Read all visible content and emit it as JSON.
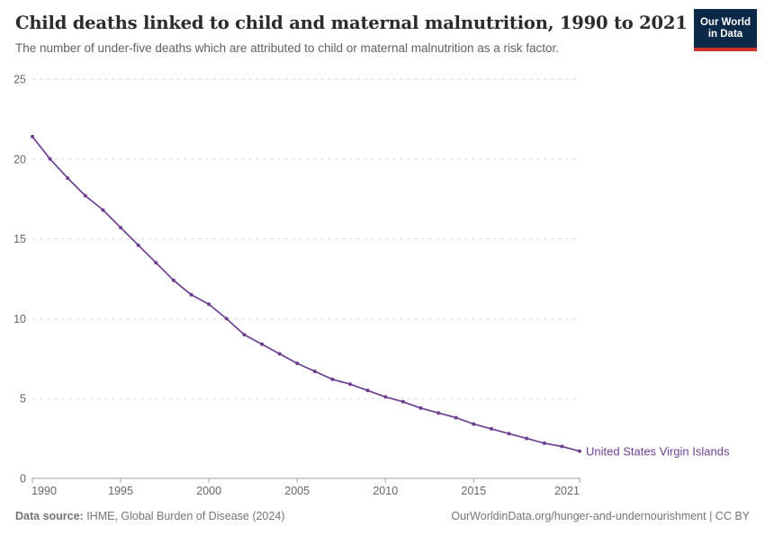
{
  "header": {
    "title": "Child deaths linked to child and maternal malnutrition, 1990 to 2021",
    "subtitle": "The number of under-five deaths which are attributed to child or maternal malnutrition as a risk factor.",
    "logo_line1": "Our World",
    "logo_line2": "in Data"
  },
  "footer": {
    "data_source_label": "Data source:",
    "data_source_value": " IHME, Global Burden of Disease (2024)",
    "credit": "OurWorldinData.org/hunger-and-undernourishment | CC BY"
  },
  "colors": {
    "series": "#6d3e91",
    "grid": "#dedede",
    "axis": "#a1a1a1",
    "tick_label": "#666666",
    "logo_bg": "#0c2949",
    "logo_bar": "#cf312b"
  },
  "chart_data": {
    "type": "line",
    "title": "Child deaths linked to child and maternal malnutrition, 1990 to 2021",
    "xlabel": "",
    "ylabel": "",
    "ylim": [
      0,
      25
    ],
    "yticks": [
      0,
      5,
      10,
      15,
      20,
      25
    ],
    "xticks": [
      1990,
      1995,
      2000,
      2005,
      2010,
      2015,
      2021
    ],
    "grid": "horizontal-dashed",
    "legend_position": "end-of-line-label",
    "x": [
      1990,
      1991,
      1992,
      1993,
      1994,
      1995,
      1996,
      1997,
      1998,
      1999,
      2000,
      2001,
      2002,
      2003,
      2004,
      2005,
      2006,
      2007,
      2008,
      2009,
      2010,
      2011,
      2012,
      2013,
      2014,
      2015,
      2016,
      2017,
      2018,
      2019,
      2020,
      2021
    ],
    "series": [
      {
        "name": "United States Virgin Islands",
        "color": "#6d3e91",
        "values": [
          21.4,
          20.0,
          18.8,
          17.7,
          16.8,
          15.7,
          14.6,
          13.5,
          12.4,
          11.5,
          10.9,
          10.0,
          9.0,
          8.4,
          7.8,
          7.2,
          6.7,
          6.2,
          5.9,
          5.5,
          5.1,
          4.8,
          4.4,
          4.1,
          3.8,
          3.4,
          3.1,
          2.8,
          2.5,
          2.2,
          2.0,
          1.7
        ]
      }
    ]
  }
}
